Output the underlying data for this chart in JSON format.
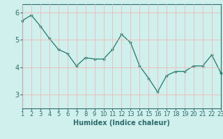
{
  "x": [
    1,
    2,
    3,
    4,
    5,
    6,
    7,
    8,
    9,
    10,
    11,
    12,
    13,
    14,
    15,
    16,
    17,
    18,
    19,
    20,
    21,
    22,
    23
  ],
  "y": [
    5.7,
    5.9,
    5.5,
    5.05,
    4.65,
    4.5,
    4.05,
    4.35,
    4.3,
    4.3,
    4.65,
    5.2,
    4.9,
    4.05,
    3.6,
    3.1,
    3.7,
    3.85,
    3.85,
    4.05,
    4.05,
    4.45,
    3.8
  ],
  "line_color": "#1a7a6e",
  "marker": "*",
  "marker_size": 3,
  "xlabel": "Humidex (Indice chaleur)",
  "xlim": [
    1,
    23
  ],
  "ylim": [
    2.5,
    6.3
  ],
  "yticks": [
    3,
    4,
    5,
    6
  ],
  "xticks": [
    1,
    2,
    3,
    4,
    5,
    6,
    7,
    8,
    9,
    10,
    11,
    12,
    13,
    14,
    15,
    16,
    17,
    18,
    19,
    20,
    21,
    22,
    23
  ],
  "bg_color": "#cff0ec",
  "grid_color": "#f0b8b8",
  "axes_color": "#2d6b6b",
  "tick_fontsize": 6,
  "xlabel_fontsize": 7
}
